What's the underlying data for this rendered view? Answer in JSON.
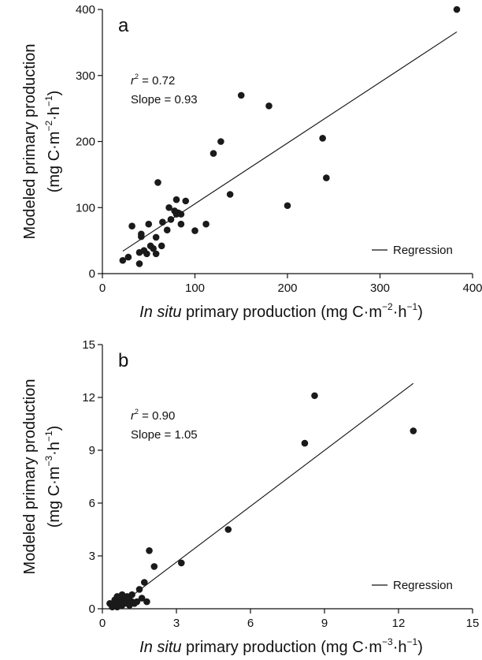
{
  "chart_data": [
    {
      "type": "scatter",
      "panel_label": "a",
      "xlabel": {
        "italic": "In situ",
        "rest": " primary production (mg C·m",
        "sup1": "−2",
        "mid": "·h",
        "sup2": "−1",
        "end": ")"
      },
      "ylabel": {
        "line1": "Modeled primary production",
        "line2_pre": "(mg C·m",
        "sup1": "−2",
        "mid": "·h",
        "sup2": "−1",
        "end": ")"
      },
      "xlim": [
        0,
        400
      ],
      "ylim": [
        0,
        400
      ],
      "xticks": [
        0,
        100,
        200,
        300,
        400
      ],
      "yticks": [
        0,
        100,
        200,
        300,
        400
      ],
      "r2_label": "r",
      "r2_value": "= 0.72",
      "slope_text": "Slope = 0.93",
      "legend": "Regression",
      "regression": {
        "x": [
          22,
          383
        ],
        "y": [
          34,
          366
        ]
      },
      "points": {
        "x": [
          22,
          28,
          32,
          40,
          40,
          42,
          42,
          45,
          48,
          50,
          52,
          55,
          58,
          58,
          60,
          64,
          65,
          70,
          72,
          74,
          78,
          80,
          80,
          82,
          85,
          85,
          90,
          100,
          112,
          120,
          128,
          138,
          150,
          180,
          200,
          238,
          242,
          383
        ],
        "y": [
          20,
          25,
          72,
          15,
          32,
          56,
          60,
          35,
          30,
          75,
          42,
          38,
          30,
          55,
          138,
          42,
          78,
          66,
          100,
          82,
          95,
          90,
          112,
          92,
          75,
          90,
          110,
          65,
          75,
          182,
          200,
          120,
          270,
          254,
          103,
          205,
          145,
          400
        ]
      }
    },
    {
      "type": "scatter",
      "panel_label": "b",
      "xlabel": {
        "italic": "In situ",
        "rest": " primary production (mg C·m",
        "sup1": "−3",
        "mid": "·h",
        "sup2": "−1",
        "end": ")"
      },
      "ylabel": {
        "line1": "Modeled primary production",
        "line2_pre": "(mg C·m",
        "sup1": "−3",
        "mid": "·h",
        "sup2": "−1",
        "end": ")"
      },
      "xlim": [
        0,
        15
      ],
      "ylim": [
        0,
        15
      ],
      "xticks": [
        0,
        3,
        6,
        9,
        12,
        15
      ],
      "yticks": [
        0,
        3,
        6,
        9,
        12,
        15
      ],
      "r2_label": "r",
      "r2_value": "= 0.90",
      "slope_text": "Slope = 1.05",
      "legend": "Regression",
      "regression": {
        "x": [
          0.5,
          12.6
        ],
        "y": [
          0.0,
          12.8
        ]
      },
      "points": {
        "x": [
          0.3,
          0.4,
          0.5,
          0.5,
          0.6,
          0.6,
          0.7,
          0.7,
          0.8,
          0.8,
          0.9,
          0.9,
          1.0,
          1.0,
          1.1,
          1.1,
          1.2,
          1.2,
          1.3,
          1.4,
          1.5,
          1.6,
          1.7,
          1.8,
          1.9,
          2.1,
          3.2,
          5.1,
          8.2,
          8.6,
          12.6
        ],
        "y": [
          0.3,
          0.1,
          0.2,
          0.5,
          0.1,
          0.7,
          0.3,
          0.6,
          0.2,
          0.8,
          0.4,
          0.6,
          0.3,
          0.7,
          0.2,
          0.5,
          0.4,
          0.8,
          0.3,
          0.4,
          1.1,
          0.6,
          1.5,
          0.4,
          3.3,
          2.4,
          2.6,
          4.5,
          9.4,
          12.1,
          10.1
        ]
      }
    }
  ]
}
